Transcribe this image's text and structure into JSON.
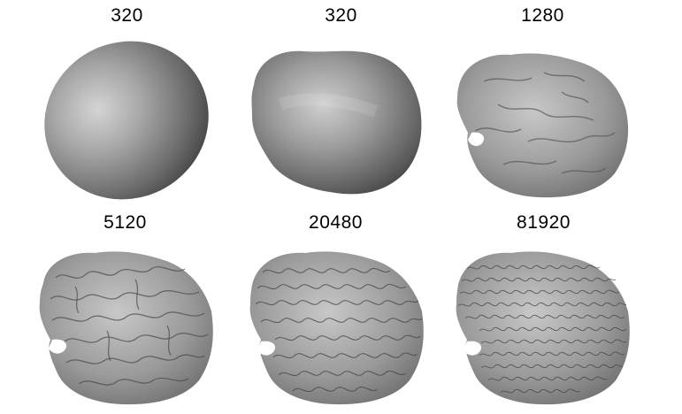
{
  "figure": {
    "panels": [
      {
        "label": "320",
        "surface": "smooth-ellipsoid"
      },
      {
        "label": "320",
        "surface": "lumpy-ellipsoid"
      },
      {
        "label": "1280",
        "surface": "coarse-folded-brain"
      },
      {
        "label": "5120",
        "surface": "folded-brain"
      },
      {
        "label": "20480",
        "surface": "fine-folded-brain"
      },
      {
        "label": "81920",
        "surface": "finest-folded-brain"
      }
    ]
  }
}
